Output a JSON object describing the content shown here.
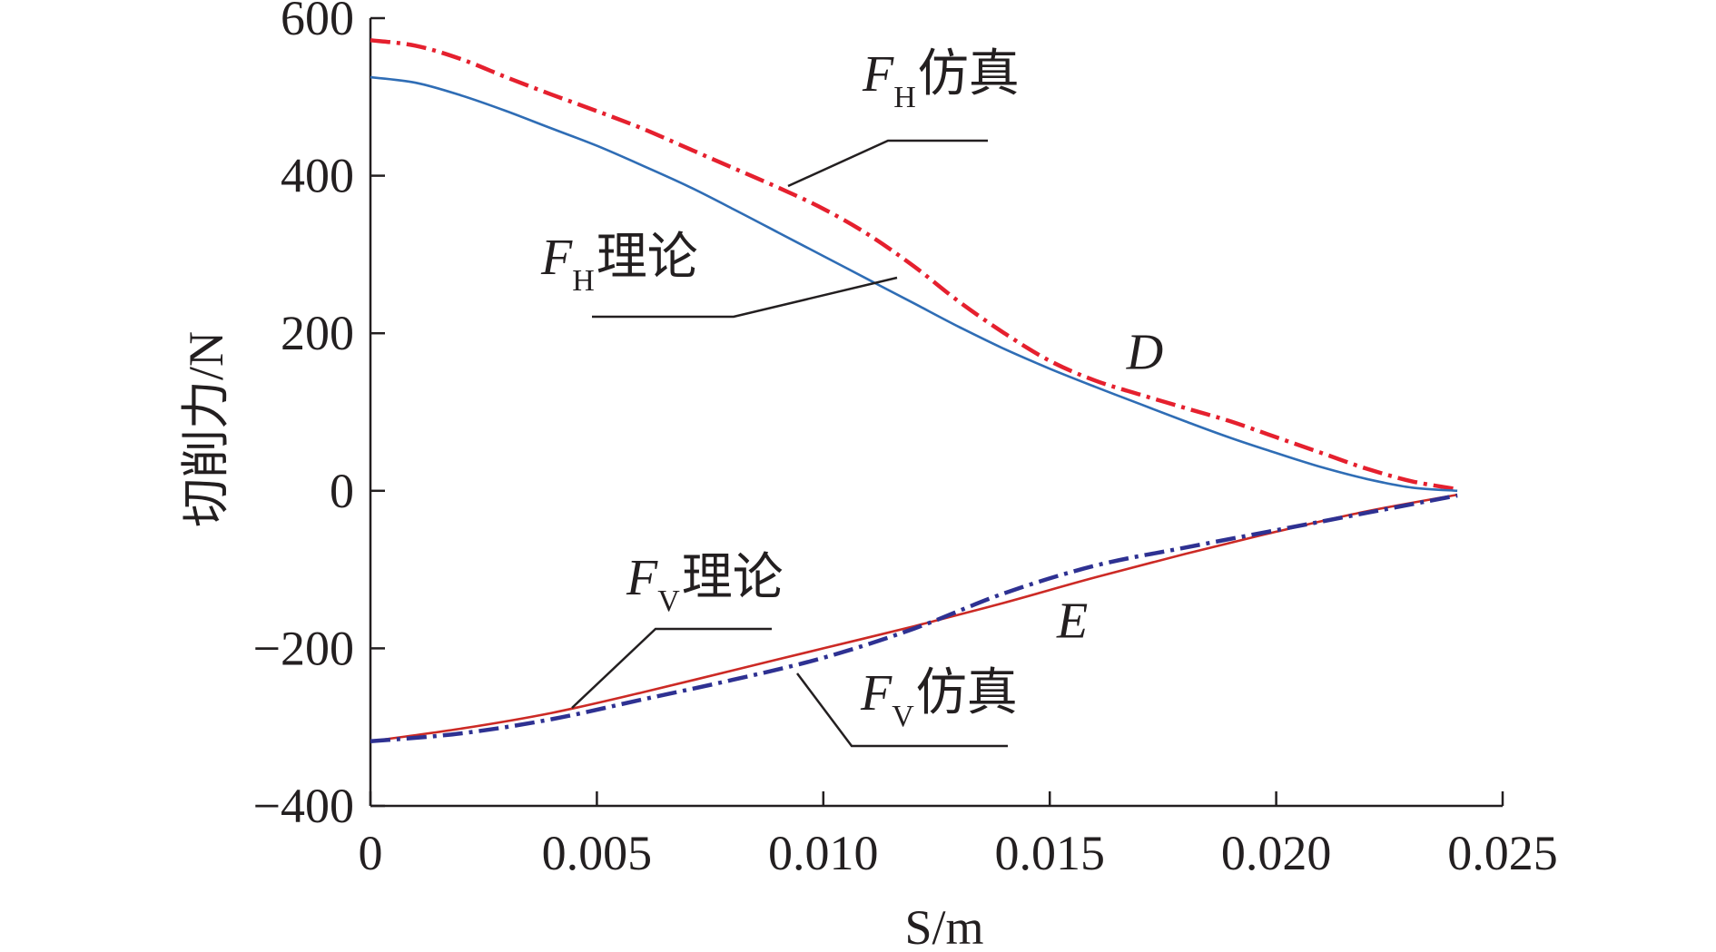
{
  "chart_data": {
    "type": "line",
    "xlabel": "S/m",
    "ylabel": "切削力/N",
    "xlim": [
      0,
      0.025
    ],
    "ylim": [
      -400,
      600
    ],
    "x_ticks": [
      0,
      0.005,
      0.01,
      0.015,
      0.02,
      0.025
    ],
    "x_tick_labels": [
      "0",
      "0.005",
      "0.010",
      "0.015",
      "0.020",
      "0.025"
    ],
    "y_ticks": [
      -400,
      -200,
      0,
      200,
      400,
      600
    ],
    "y_tick_labels": [
      "−400",
      "−200",
      "0",
      "200",
      "400",
      "600"
    ],
    "grid": false,
    "series": [
      {
        "name": "FH仿真",
        "label_main": "F",
        "label_sub": "H",
        "label_text": "仿真",
        "style": "dash-dot",
        "color": "#e5202e",
        "x": [
          0,
          0.001,
          0.002,
          0.003,
          0.004,
          0.005,
          0.006,
          0.007,
          0.008,
          0.009,
          0.01,
          0.011,
          0.012,
          0.013,
          0.014,
          0.015,
          0.016,
          0.017,
          0.018,
          0.019,
          0.02,
          0.021,
          0.022,
          0.023,
          0.024
        ],
        "y": [
          572,
          565,
          548,
          525,
          503,
          482,
          460,
          435,
          410,
          385,
          358,
          325,
          285,
          240,
          200,
          165,
          140,
          122,
          105,
          88,
          68,
          48,
          28,
          12,
          2
        ]
      },
      {
        "name": "FH理论",
        "label_main": "F",
        "label_sub": "H",
        "label_text": "理论",
        "style": "solid",
        "color": "#2f6db5",
        "x": [
          0,
          0.001,
          0.002,
          0.003,
          0.004,
          0.005,
          0.006,
          0.007,
          0.008,
          0.009,
          0.01,
          0.011,
          0.012,
          0.013,
          0.014,
          0.015,
          0.016,
          0.017,
          0.018,
          0.019,
          0.02,
          0.021,
          0.022,
          0.023,
          0.024
        ],
        "y": [
          525,
          518,
          502,
          482,
          460,
          438,
          413,
          387,
          358,
          328,
          298,
          268,
          238,
          208,
          180,
          155,
          132,
          110,
          88,
          67,
          48,
          30,
          15,
          4,
          0
        ]
      },
      {
        "name": "FV理论",
        "label_main": "F",
        "label_sub": "V",
        "label_text": "理论",
        "style": "solid",
        "color": "#cc2a25",
        "x": [
          0,
          0.002,
          0.004,
          0.006,
          0.008,
          0.01,
          0.012,
          0.014,
          0.016,
          0.018,
          0.02,
          0.022,
          0.024
        ],
        "y": [
          -318,
          -302,
          -282,
          -256,
          -228,
          -200,
          -172,
          -142,
          -110,
          -80,
          -52,
          -26,
          -5
        ]
      },
      {
        "name": "FV仿真",
        "label_main": "F",
        "label_sub": "V",
        "label_text": "仿真",
        "style": "dash-dot",
        "color": "#2e3192",
        "x": [
          0,
          0.002,
          0.004,
          0.006,
          0.008,
          0.01,
          0.012,
          0.014,
          0.016,
          0.018,
          0.02,
          0.022,
          0.024
        ],
        "y": [
          -318,
          -308,
          -290,
          -265,
          -240,
          -212,
          -175,
          -130,
          -95,
          -72,
          -50,
          -28,
          -6
        ]
      }
    ],
    "point_labels": [
      {
        "label": "D",
        "x": 0.0171,
        "y": 178
      },
      {
        "label": "E",
        "x": 0.0155,
        "y": -163
      }
    ]
  }
}
